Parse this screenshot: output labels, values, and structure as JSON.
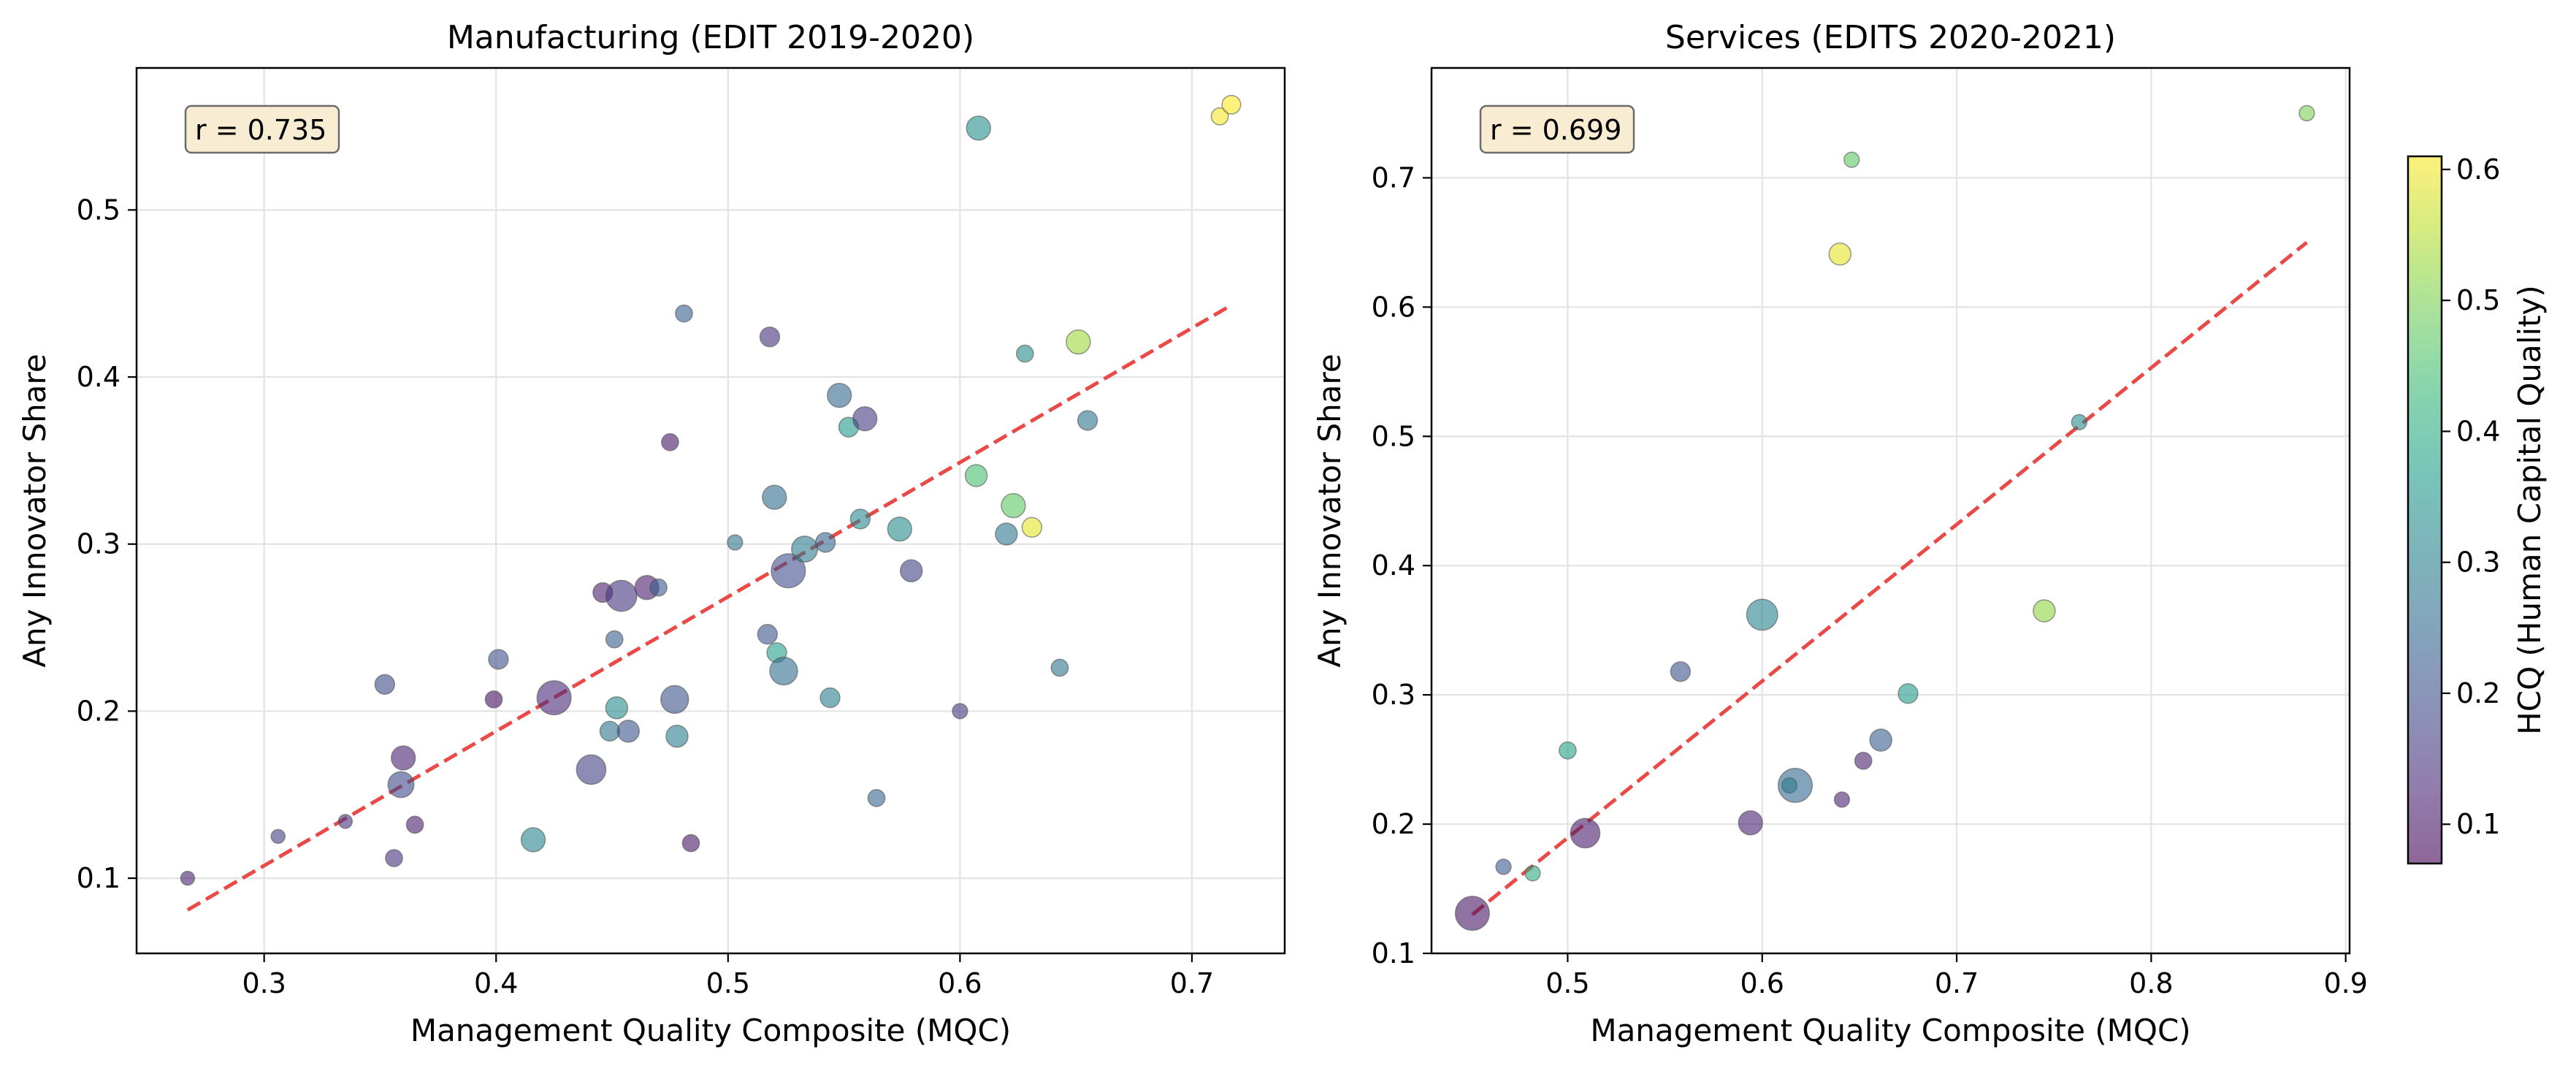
{
  "chart_data": [
    {
      "type": "scatter",
      "title": "Manufacturing (EDIT 2019-2020)",
      "xlabel": "Management Quality Composite (MQC)",
      "ylabel": "Any Innovator Share",
      "xlim": [
        0.245,
        0.74
      ],
      "ylim": [
        0.055,
        0.585
      ],
      "xticks": [
        "0.3",
        "0.4",
        "0.5",
        "0.6",
        "0.7"
      ],
      "yticks": [
        "0.1",
        "0.2",
        "0.3",
        "0.4",
        "0.5"
      ],
      "grid": true,
      "annotation": "r = 0.735",
      "trendline": {
        "x0": 0.267,
        "y0": 0.081,
        "x1": 0.717,
        "y1": 0.443,
        "color": "#e8403d"
      },
      "points": [
        {
          "x": 0.267,
          "y": 0.1,
          "s": 1,
          "hcq": 0.12
        },
        {
          "x": 0.306,
          "y": 0.125,
          "s": 1,
          "hcq": 0.17
        },
        {
          "x": 0.335,
          "y": 0.134,
          "s": 1,
          "hcq": 0.15
        },
        {
          "x": 0.352,
          "y": 0.216,
          "s": 2,
          "hcq": 0.19
        },
        {
          "x": 0.356,
          "y": 0.112,
          "s": 1.5,
          "hcq": 0.14
        },
        {
          "x": 0.359,
          "y": 0.156,
          "s": 3.5,
          "hcq": 0.19
        },
        {
          "x": 0.36,
          "y": 0.172,
          "s": 3,
          "hcq": 0.12
        },
        {
          "x": 0.365,
          "y": 0.132,
          "s": 1.5,
          "hcq": 0.11
        },
        {
          "x": 0.399,
          "y": 0.207,
          "s": 1.5,
          "hcq": 0.09
        },
        {
          "x": 0.401,
          "y": 0.231,
          "s": 2,
          "hcq": 0.2
        },
        {
          "x": 0.416,
          "y": 0.123,
          "s": 3,
          "hcq": 0.31
        },
        {
          "x": 0.425,
          "y": 0.208,
          "s": 6,
          "hcq": 0.13
        },
        {
          "x": 0.441,
          "y": 0.165,
          "s": 4.5,
          "hcq": 0.17
        },
        {
          "x": 0.446,
          "y": 0.271,
          "s": 2,
          "hcq": 0.11
        },
        {
          "x": 0.449,
          "y": 0.188,
          "s": 2,
          "hcq": 0.27
        },
        {
          "x": 0.451,
          "y": 0.243,
          "s": 1.5,
          "hcq": 0.23
        },
        {
          "x": 0.452,
          "y": 0.202,
          "s": 2.5,
          "hcq": 0.33
        },
        {
          "x": 0.454,
          "y": 0.269,
          "s": 5,
          "hcq": 0.15
        },
        {
          "x": 0.457,
          "y": 0.188,
          "s": 2.5,
          "hcq": 0.21
        },
        {
          "x": 0.465,
          "y": 0.274,
          "s": 3,
          "hcq": 0.11
        },
        {
          "x": 0.47,
          "y": 0.274,
          "s": 1.5,
          "hcq": 0.22
        },
        {
          "x": 0.475,
          "y": 0.361,
          "s": 1.5,
          "hcq": 0.1
        },
        {
          "x": 0.477,
          "y": 0.207,
          "s": 4,
          "hcq": 0.21
        },
        {
          "x": 0.478,
          "y": 0.185,
          "s": 2.5,
          "hcq": 0.3
        },
        {
          "x": 0.481,
          "y": 0.438,
          "s": 1.5,
          "hcq": 0.23
        },
        {
          "x": 0.484,
          "y": 0.121,
          "s": 1.5,
          "hcq": 0.1
        },
        {
          "x": 0.503,
          "y": 0.301,
          "s": 1.2,
          "hcq": 0.27
        },
        {
          "x": 0.517,
          "y": 0.246,
          "s": 2,
          "hcq": 0.21
        },
        {
          "x": 0.518,
          "y": 0.424,
          "s": 2,
          "hcq": 0.14
        },
        {
          "x": 0.52,
          "y": 0.328,
          "s": 3,
          "hcq": 0.26
        },
        {
          "x": 0.521,
          "y": 0.235,
          "s": 2,
          "hcq": 0.37
        },
        {
          "x": 0.524,
          "y": 0.224,
          "s": 4,
          "hcq": 0.26
        },
        {
          "x": 0.526,
          "y": 0.284,
          "s": 6,
          "hcq": 0.2
        },
        {
          "x": 0.533,
          "y": 0.297,
          "s": 3.5,
          "hcq": 0.29
        },
        {
          "x": 0.542,
          "y": 0.301,
          "s": 2,
          "hcq": 0.25
        },
        {
          "x": 0.544,
          "y": 0.208,
          "s": 2,
          "hcq": 0.3
        },
        {
          "x": 0.548,
          "y": 0.389,
          "s": 3,
          "hcq": 0.25
        },
        {
          "x": 0.552,
          "y": 0.37,
          "s": 2,
          "hcq": 0.36
        },
        {
          "x": 0.557,
          "y": 0.315,
          "s": 2,
          "hcq": 0.32
        },
        {
          "x": 0.559,
          "y": 0.375,
          "s": 3,
          "hcq": 0.16
        },
        {
          "x": 0.564,
          "y": 0.148,
          "s": 1.5,
          "hcq": 0.24
        },
        {
          "x": 0.574,
          "y": 0.309,
          "s": 3,
          "hcq": 0.33
        },
        {
          "x": 0.579,
          "y": 0.284,
          "s": 2.5,
          "hcq": 0.17
        },
        {
          "x": 0.6,
          "y": 0.2,
          "s": 1.2,
          "hcq": 0.15
        },
        {
          "x": 0.607,
          "y": 0.341,
          "s": 2.5,
          "hcq": 0.45
        },
        {
          "x": 0.608,
          "y": 0.549,
          "s": 3,
          "hcq": 0.34
        },
        {
          "x": 0.62,
          "y": 0.306,
          "s": 2.5,
          "hcq": 0.28
        },
        {
          "x": 0.623,
          "y": 0.323,
          "s": 3,
          "hcq": 0.47
        },
        {
          "x": 0.628,
          "y": 0.414,
          "s": 1.5,
          "hcq": 0.33
        },
        {
          "x": 0.631,
          "y": 0.31,
          "s": 2,
          "hcq": 0.59
        },
        {
          "x": 0.643,
          "y": 0.226,
          "s": 1.5,
          "hcq": 0.27
        },
        {
          "x": 0.651,
          "y": 0.421,
          "s": 3,
          "hcq": 0.53
        },
        {
          "x": 0.655,
          "y": 0.374,
          "s": 2,
          "hcq": 0.27
        },
        {
          "x": 0.712,
          "y": 0.556,
          "s": 1.5,
          "hcq": 0.6
        },
        {
          "x": 0.717,
          "y": 0.563,
          "s": 1.8,
          "hcq": 0.61
        }
      ]
    },
    {
      "type": "scatter",
      "title": "Services (EDITS 2020-2021)",
      "xlabel": "Management Quality Composite (MQC)",
      "ylabel": "Any Innovator Share",
      "xlim": [
        0.43,
        0.902
      ],
      "ylim": [
        0.1,
        0.785
      ],
      "xticks": [
        "0.5",
        "0.6",
        "0.7",
        "0.8",
        "0.9"
      ],
      "yticks": [
        "0.1",
        "0.2",
        "0.3",
        "0.4",
        "0.5",
        "0.6",
        "0.7"
      ],
      "grid": true,
      "annotation": "r = 0.699",
      "trendline": {
        "x0": 0.451,
        "y0": 0.13,
        "x1": 0.88,
        "y1": 0.65,
        "color": "#e8403d"
      },
      "points": [
        {
          "x": 0.451,
          "y": 0.131,
          "s": 6,
          "hcq": 0.1
        },
        {
          "x": 0.467,
          "y": 0.167,
          "s": 1.2,
          "hcq": 0.22
        },
        {
          "x": 0.482,
          "y": 0.162,
          "s": 1.2,
          "hcq": 0.4
        },
        {
          "x": 0.5,
          "y": 0.257,
          "s": 1.5,
          "hcq": 0.38
        },
        {
          "x": 0.509,
          "y": 0.193,
          "s": 4.5,
          "hcq": 0.11
        },
        {
          "x": 0.558,
          "y": 0.318,
          "s": 2,
          "hcq": 0.21
        },
        {
          "x": 0.594,
          "y": 0.201,
          "s": 3,
          "hcq": 0.12
        },
        {
          "x": 0.6,
          "y": 0.362,
          "s": 5,
          "hcq": 0.31
        },
        {
          "x": 0.614,
          "y": 0.23,
          "s": 1.2,
          "hcq": 0.36
        },
        {
          "x": 0.617,
          "y": 0.23,
          "s": 6,
          "hcq": 0.25
        },
        {
          "x": 0.64,
          "y": 0.641,
          "s": 2.5,
          "hcq": 0.59
        },
        {
          "x": 0.641,
          "y": 0.219,
          "s": 1.2,
          "hcq": 0.12
        },
        {
          "x": 0.646,
          "y": 0.714,
          "s": 1.2,
          "hcq": 0.47
        },
        {
          "x": 0.652,
          "y": 0.249,
          "s": 1.5,
          "hcq": 0.12
        },
        {
          "x": 0.661,
          "y": 0.265,
          "s": 2.5,
          "hcq": 0.23
        },
        {
          "x": 0.675,
          "y": 0.301,
          "s": 2,
          "hcq": 0.36
        },
        {
          "x": 0.745,
          "y": 0.365,
          "s": 2.5,
          "hcq": 0.52
        },
        {
          "x": 0.763,
          "y": 0.511,
          "s": 1.2,
          "hcq": 0.33
        },
        {
          "x": 0.88,
          "y": 0.75,
          "s": 1.2,
          "hcq": 0.5
        }
      ]
    }
  ],
  "colorbar": {
    "label": "HCQ (Human Capital Quality)",
    "range": [
      0.07,
      0.61
    ],
    "ticks": [
      "0.1",
      "0.2",
      "0.3",
      "0.4",
      "0.5",
      "0.6"
    ],
    "colormap": "viridis",
    "alpha": 0.6
  }
}
